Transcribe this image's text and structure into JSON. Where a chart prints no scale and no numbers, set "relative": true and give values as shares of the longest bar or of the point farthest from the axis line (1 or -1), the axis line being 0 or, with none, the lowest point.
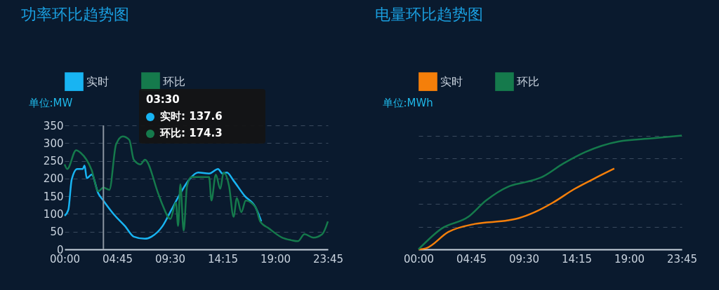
{
  "chart_data": [
    {
      "type": "line",
      "title": "功率环比趋势图",
      "ylabel": "单位:MW",
      "xlim": [
        0,
        23.75
      ],
      "xticks": [
        {
          "value": 0,
          "label": "00:00"
        },
        {
          "value": 4.75,
          "label": "04:45"
        },
        {
          "value": 9.5,
          "label": "09:30"
        },
        {
          "value": 14.25,
          "label": "14:15"
        },
        {
          "value": 19,
          "label": "19:00"
        },
        {
          "value": 23.75,
          "label": "23:45"
        }
      ],
      "ylim": [
        0,
        350
      ],
      "yticks": [
        0,
        50,
        100,
        150,
        200,
        250,
        300,
        350
      ],
      "grid": "y",
      "legend": "top",
      "ref_lines": [
        {
          "axis": "x",
          "value": 3.5,
          "color": "#8a94a0"
        }
      ],
      "annotations": [
        "03:30",
        "实时: 137.6",
        "环比: 174.3"
      ],
      "series": [
        {
          "name": "实时",
          "color": "#18b4f2",
          "x": [
            0,
            0.34,
            0.64,
            1.14,
            1.64,
            1.8,
            2.0,
            2.44,
            3.04,
            3.5,
            4.44,
            5.44,
            6.24,
            7.24,
            7.84,
            8.84,
            9.64,
            10.44,
            11.24,
            12.04,
            13.04,
            13.84,
            14.24,
            14.64,
            15.24,
            16.24,
            17.24,
            17.74
          ],
          "values": [
            95,
            112,
            197,
            227,
            227,
            237,
            201,
            211,
            158,
            137.6,
            99,
            66,
            36,
            30,
            36,
            66,
            112,
            158,
            197,
            217,
            214,
            227,
            214,
            217,
            194,
            151,
            118,
            79
          ]
        },
        {
          "name": "环比",
          "color": "#157a4c",
          "x": [
            0,
            0.24,
            1.04,
            1.44,
            2.44,
            3.04,
            3.5,
            4.04,
            4.64,
            5.24,
            5.84,
            6.24,
            6.84,
            7.24,
            8.44,
            8.84,
            9.54,
            10.04,
            10.24,
            10.44,
            10.74,
            11.04,
            11.44,
            12.44,
            13.04,
            13.24,
            13.64,
            14.04,
            14.34,
            14.84,
            15.24,
            15.54,
            15.94,
            16.34,
            17.24,
            17.64,
            18.44,
            19.64,
            20.44,
            21.04,
            21.64,
            22.44,
            23.24,
            23.75
          ],
          "values": [
            240,
            227,
            280,
            273,
            224,
            164,
            174.3,
            168,
            296,
            319,
            309,
            253,
            240,
            253,
            158,
            125,
            86,
            132,
            66,
            184,
            53,
            178,
            204,
            204,
            204,
            138,
            211,
            171,
            217,
            178,
            92,
            145,
            105,
            138,
            118,
            79,
            59,
            33,
            26,
            23,
            43,
            33,
            43,
            79
          ]
        }
      ]
    },
    {
      "type": "line",
      "title": "电量环比趋势图",
      "ylabel": "单位:MWh",
      "relative": true,
      "xlim": [
        0,
        23.75
      ],
      "xticks": [
        {
          "value": 0,
          "label": "00:00"
        },
        {
          "value": 4.75,
          "label": "04:45"
        },
        {
          "value": 9.5,
          "label": "09:30"
        },
        {
          "value": 14.25,
          "label": "14:15"
        },
        {
          "value": 19,
          "label": "19:00"
        },
        {
          "value": 23.75,
          "label": "23:45"
        }
      ],
      "grid": "y",
      "legend": "top",
      "series": [
        {
          "name": "实时",
          "color": "#f57f0a",
          "x": [
            0,
            0.7,
            2.69,
            5.09,
            8.08,
            9.08,
            10.48,
            12.07,
            14.07,
            16.07,
            17.66
          ],
          "values": [
            0,
            0.01,
            0.153,
            0.224,
            0.255,
            0.276,
            0.327,
            0.408,
            0.531,
            0.633,
            0.71
          ]
        },
        {
          "name": "环比",
          "color": "#157a4c",
          "x": [
            0,
            2.1,
            4.49,
            6.09,
            8.08,
            9.68,
            11.08,
            13.07,
            15.07,
            18.06,
            21.06,
            23.75
          ],
          "values": [
            0,
            0.184,
            0.286,
            0.429,
            0.551,
            0.592,
            0.633,
            0.755,
            0.857,
            0.949,
            0.976,
            1
          ]
        }
      ]
    }
  ]
}
